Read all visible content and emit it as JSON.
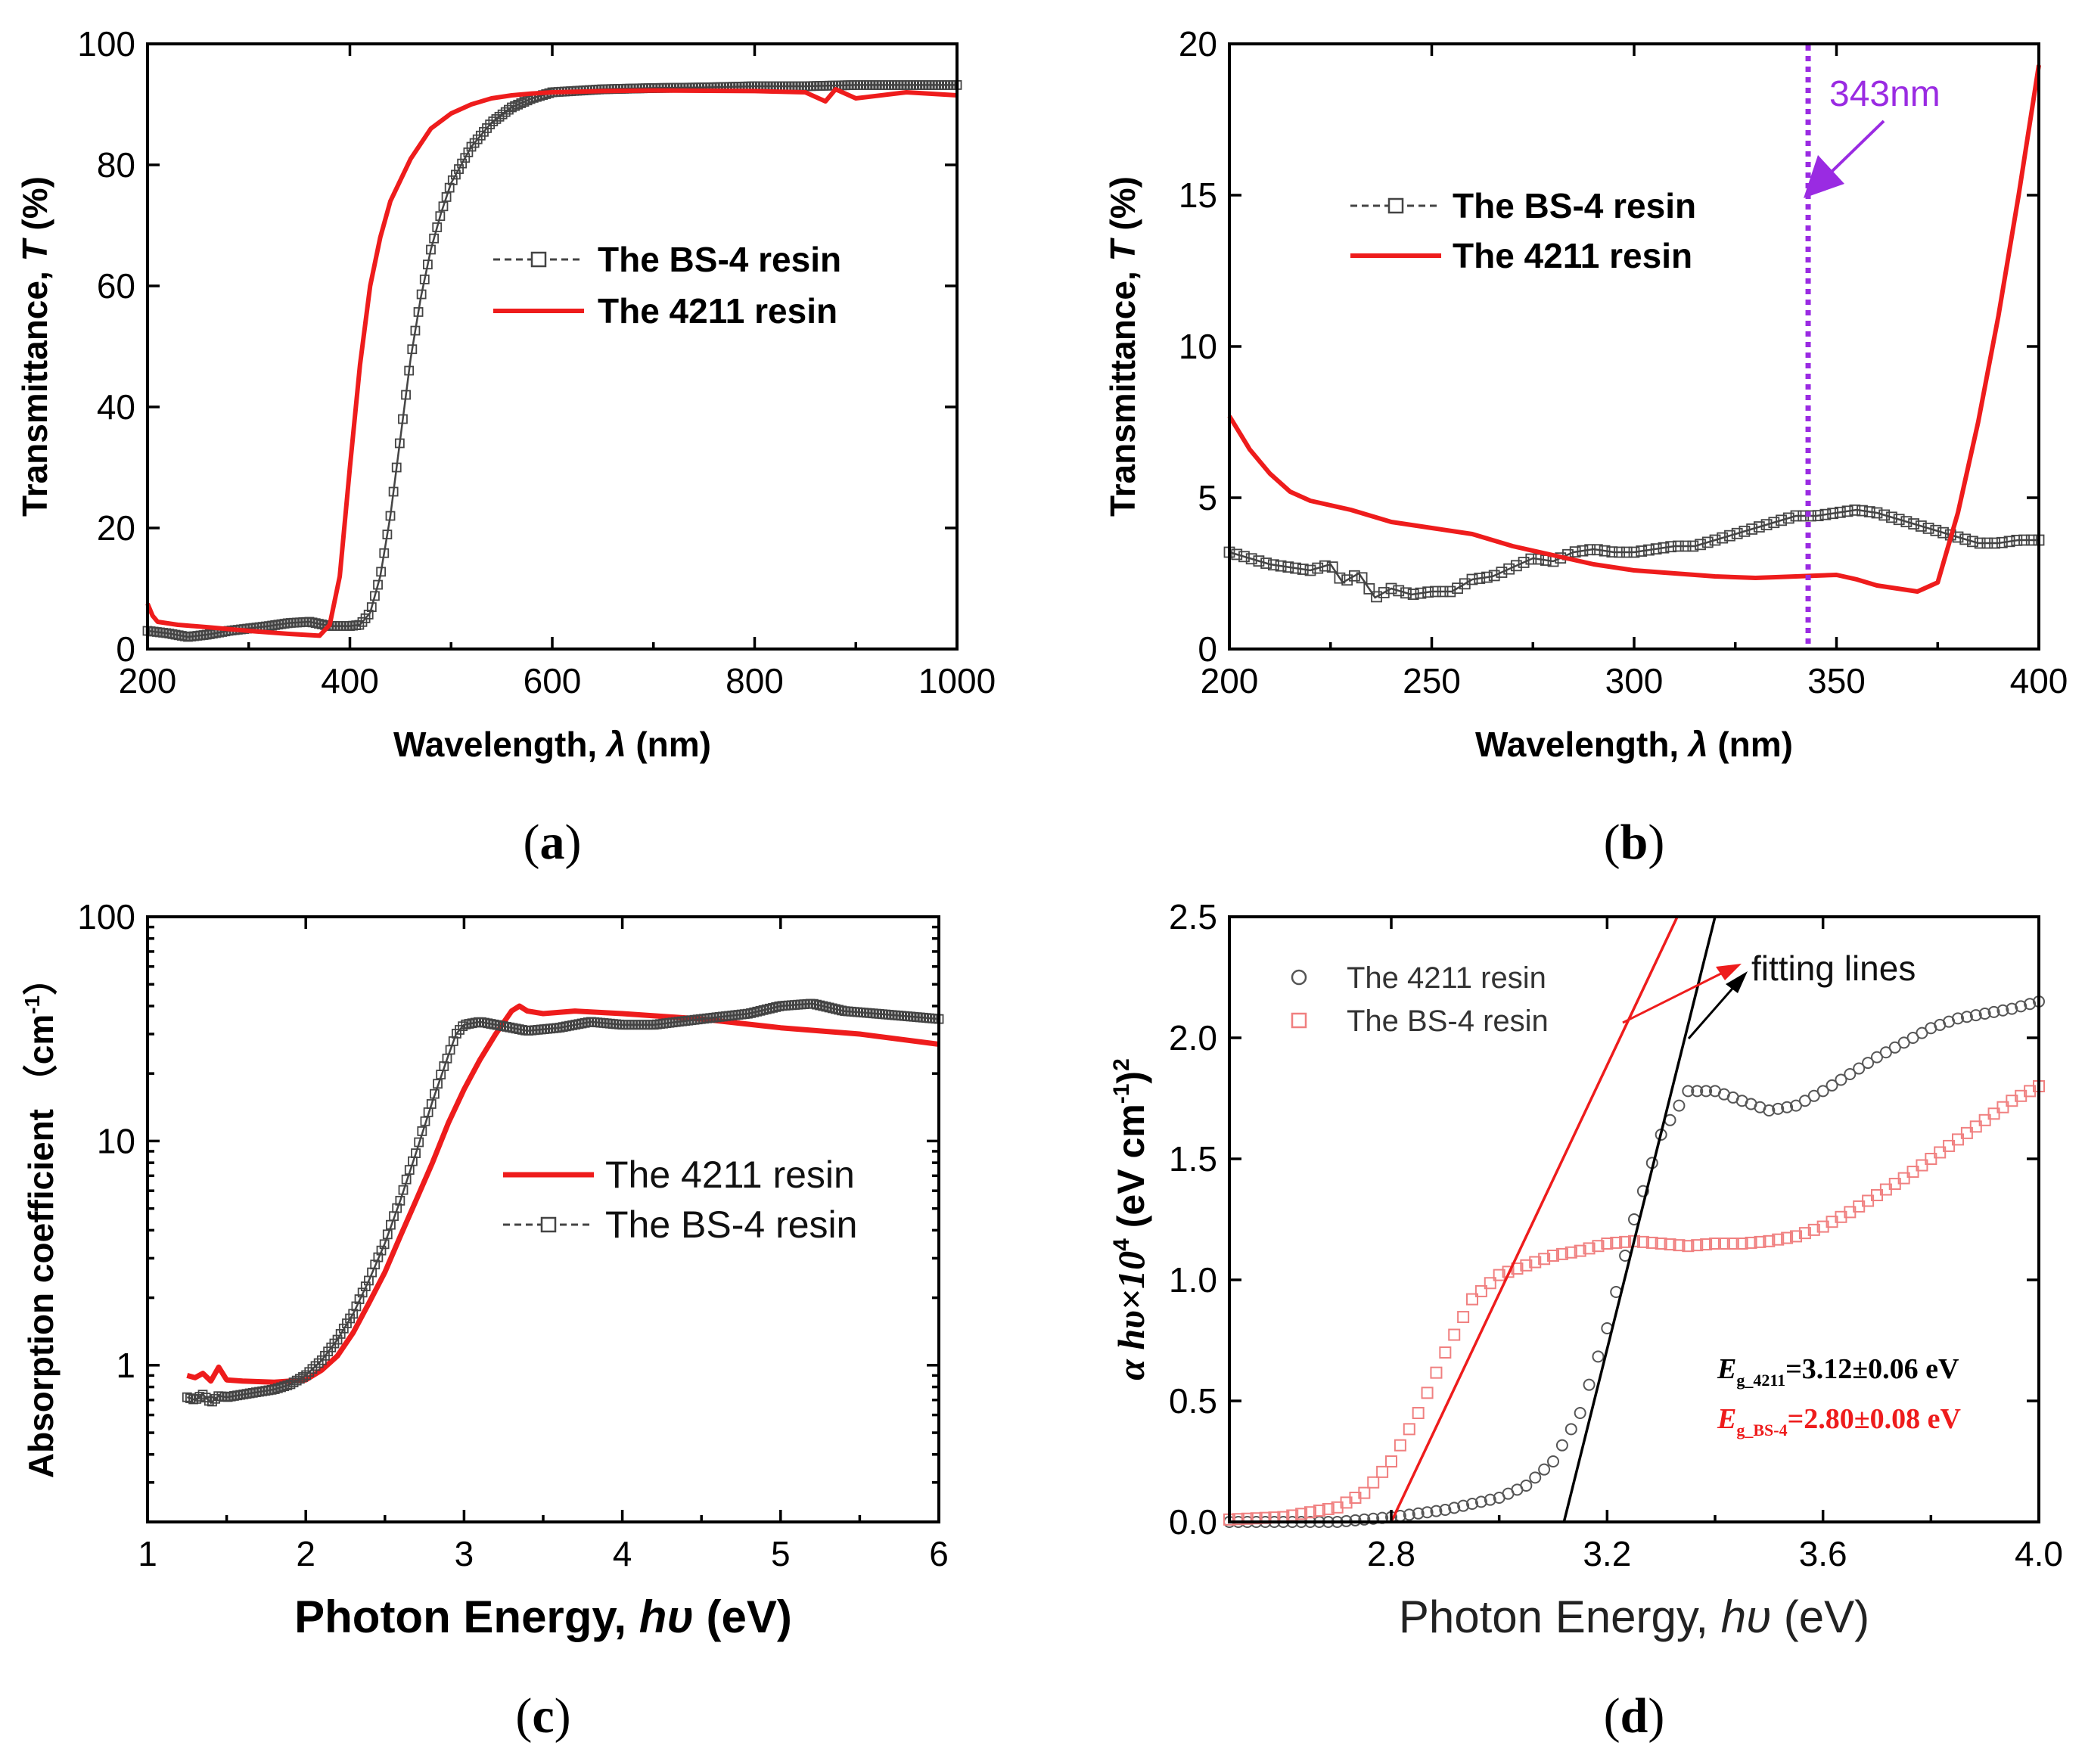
{
  "colors": {
    "red": "#ee1c1c",
    "gray": "#444444",
    "purple": "#9a2be2",
    "pink": "#f08080",
    "black": "#000000"
  },
  "panels": [
    {
      "label": "(a)",
      "l": "(",
      "c": "a",
      "r": ")"
    },
    {
      "label": "(b)",
      "l": "(",
      "c": "b",
      "r": ")"
    },
    {
      "label": "(c)",
      "l": "(",
      "c": "c",
      "r": ")"
    },
    {
      "label": "(d)",
      "l": "(",
      "c": "d",
      "r": ")"
    }
  ],
  "chart_data": [
    {
      "type": "line",
      "panel": "a",
      "xlabel": "Wavelength, λ (nm)",
      "xlabel_parts": {
        "pre": "Wavelength, ",
        "sym": "λ",
        "post": " (nm)"
      },
      "ylabel": "Transmittance, T (%)",
      "ylabel_parts": {
        "pre": "Transmittance, ",
        "sym": "T",
        "post": " (%)"
      },
      "xlim": [
        200,
        1000
      ],
      "ylim": [
        0,
        100
      ],
      "xticks": [
        200,
        400,
        600,
        800,
        1000
      ],
      "yticks": [
        0,
        20,
        40,
        60,
        80,
        100
      ],
      "legend": [
        "The BS-4 resin",
        "The 4211 resin"
      ],
      "series": [
        {
          "name": "The BS-4 resin",
          "style": "open-square-dashed",
          "x": [
            200,
            220,
            240,
            260,
            280,
            300,
            320,
            340,
            360,
            380,
            400,
            410,
            420,
            430,
            440,
            450,
            460,
            470,
            480,
            490,
            500,
            520,
            540,
            560,
            580,
            600,
            650,
            700,
            750,
            800,
            850,
            900,
            950,
            1000
          ],
          "y": [
            3,
            2.6,
            2,
            2.4,
            3,
            3.4,
            3.8,
            4.3,
            4.5,
            3.8,
            3.8,
            4,
            6,
            12,
            22,
            35,
            48,
            58,
            66,
            72,
            77,
            83,
            87,
            89.5,
            91,
            92,
            92.5,
            92.7,
            92.8,
            93,
            93,
            93.2,
            93.2,
            93.2
          ]
        },
        {
          "name": "The 4211 resin",
          "style": "solid",
          "x": [
            200,
            205,
            210,
            230,
            260,
            300,
            340,
            370,
            380,
            390,
            400,
            410,
            420,
            430,
            440,
            460,
            480,
            500,
            520,
            540,
            560,
            580,
            600,
            650,
            700,
            800,
            850,
            870,
            880,
            900,
            950,
            1000
          ],
          "y": [
            7.5,
            5.5,
            4.5,
            4,
            3.6,
            3,
            2.5,
            2.2,
            4,
            12,
            30,
            47,
            60,
            68,
            74,
            81,
            86,
            88.5,
            90,
            91,
            91.5,
            91.8,
            92,
            92.2,
            92.3,
            92.2,
            92,
            90.5,
            92.5,
            91,
            92,
            91.5
          ]
        }
      ]
    },
    {
      "type": "line",
      "panel": "b",
      "xlabel": "Wavelength, λ (nm)",
      "xlabel_parts": {
        "pre": "Wavelength, ",
        "sym": "λ",
        "post": " (nm)"
      },
      "ylabel": "Transmittance, T (%)",
      "ylabel_parts": {
        "pre": "Transmittance, ",
        "sym": "T",
        "post": " (%)"
      },
      "xlim": [
        200,
        400
      ],
      "ylim": [
        0,
        20
      ],
      "xticks": [
        200,
        250,
        300,
        350,
        400
      ],
      "yticks": [
        0,
        5,
        10,
        15,
        20
      ],
      "legend": [
        "The BS-4 resin",
        "The 4211 resin"
      ],
      "annotation": {
        "text": "343nm",
        "x": 343
      },
      "series": [
        {
          "name": "The BS-4 resin",
          "style": "open-square-dashed",
          "x": [
            200,
            205,
            210,
            215,
            220,
            225,
            228,
            232,
            236,
            240,
            245,
            250,
            255,
            260,
            265,
            270,
            275,
            280,
            285,
            290,
            295,
            300,
            305,
            310,
            315,
            320,
            325,
            330,
            335,
            340,
            345,
            350,
            355,
            360,
            365,
            370,
            375,
            380,
            385,
            390,
            395,
            400
          ],
          "y": [
            3.2,
            3,
            2.8,
            2.7,
            2.6,
            2.8,
            2.2,
            2.5,
            1.7,
            2,
            1.8,
            1.9,
            1.9,
            2.3,
            2.4,
            2.7,
            3,
            2.9,
            3.2,
            3.3,
            3.2,
            3.2,
            3.3,
            3.4,
            3.4,
            3.6,
            3.8,
            4,
            4.2,
            4.4,
            4.4,
            4.5,
            4.6,
            4.5,
            4.3,
            4.1,
            3.9,
            3.7,
            3.5,
            3.5,
            3.6,
            3.6
          ]
        },
        {
          "name": "The 4211 resin",
          "style": "solid",
          "x": [
            200,
            205,
            210,
            215,
            220,
            230,
            240,
            250,
            260,
            270,
            280,
            290,
            300,
            310,
            320,
            330,
            340,
            350,
            355,
            360,
            365,
            370,
            375,
            380,
            385,
            390,
            395,
            400
          ],
          "y": [
            7.7,
            6.6,
            5.8,
            5.2,
            4.9,
            4.6,
            4.2,
            4,
            3.8,
            3.4,
            3.1,
            2.8,
            2.6,
            2.5,
            2.4,
            2.35,
            2.4,
            2.45,
            2.3,
            2.1,
            2,
            1.9,
            2.2,
            4.5,
            7.5,
            11,
            15,
            19.3
          ]
        }
      ]
    },
    {
      "type": "line",
      "panel": "c",
      "xlabel": "Photon Energy, hυ (eV)",
      "xlabel_parts": {
        "pre": "Photon Energy, ",
        "sym": "hυ",
        "post": " (eV)"
      },
      "ylabel": "Absorption coefficient （cm-1）",
      "ylabel_parts": {
        "pre": "Absorption coefficient （cm",
        "sup": "-1",
        "post": "）"
      },
      "xlim": [
        1,
        6
      ],
      "ylim": [
        0.2,
        100
      ],
      "yscale": "log",
      "xticks": [
        1,
        2,
        3,
        4,
        5,
        6
      ],
      "yticks": [
        1,
        10,
        100
      ],
      "yticklabels": [
        "1",
        "10",
        "100"
      ],
      "legend": [
        "The 4211 resin",
        "The BS-4 resin"
      ],
      "series": [
        {
          "name": "The 4211 resin",
          "style": "solid",
          "x": [
            1.25,
            1.3,
            1.35,
            1.4,
            1.45,
            1.5,
            1.6,
            1.8,
            2,
            2.1,
            2.2,
            2.3,
            2.4,
            2.5,
            2.6,
            2.7,
            2.8,
            2.9,
            3,
            3.1,
            3.2,
            3.3,
            3.35,
            3.4,
            3.5,
            3.7,
            4,
            4.5,
            5,
            5.5,
            6
          ],
          "y": [
            0.9,
            0.88,
            0.92,
            0.85,
            0.98,
            0.86,
            0.85,
            0.84,
            0.86,
            0.95,
            1.1,
            1.4,
            1.9,
            2.6,
            3.8,
            5.5,
            8,
            12,
            17,
            23,
            30,
            38,
            40,
            38,
            37,
            38,
            37,
            35,
            32,
            30,
            27
          ]
        },
        {
          "name": "The BS-4 resin",
          "style": "open-square-dashed",
          "x": [
            1.25,
            1.3,
            1.35,
            1.4,
            1.45,
            1.5,
            1.6,
            1.8,
            1.9,
            2,
            2.1,
            2.2,
            2.3,
            2.4,
            2.5,
            2.6,
            2.7,
            2.8,
            2.9,
            2.95,
            3,
            3.1,
            3.2,
            3.4,
            3.6,
            3.8,
            4,
            4.2,
            4.5,
            4.8,
            5,
            5.2,
            5.4,
            5.6,
            5.8,
            6
          ],
          "y": [
            0.72,
            0.7,
            0.74,
            0.68,
            0.73,
            0.72,
            0.74,
            0.78,
            0.82,
            0.9,
            1.05,
            1.3,
            1.7,
            2.4,
            3.5,
            5.5,
            9,
            15,
            24,
            30,
            33,
            34,
            33,
            31,
            32,
            34,
            33,
            33,
            35,
            37,
            40,
            41,
            38,
            37,
            36,
            35
          ]
        }
      ]
    },
    {
      "type": "scatter",
      "panel": "d",
      "xlabel": "Photon Energy, hυ (eV)",
      "xlabel_parts": {
        "pre": "Photon Energy, ",
        "sym": "hυ",
        "post": " (eV)"
      },
      "ylabel": "α hυ×10^4 (eV cm^-1)^2",
      "ylabel_parts": {
        "a": "α hυ×10",
        "sup1": "4",
        "b": " (eV cm",
        "sup2": "-1",
        "c": ")",
        "sup3": "2"
      },
      "xlim": [
        2.5,
        4.0
      ],
      "ylim": [
        0,
        2.5
      ],
      "xticks": [
        2.8,
        3.2,
        3.6,
        4.0
      ],
      "xticklabels": [
        "2.8",
        "3.2",
        "3.6",
        "4.0"
      ],
      "yticks": [
        0,
        0.5,
        1.0,
        1.5,
        2.0,
        2.5
      ],
      "yticklabels": [
        "0.0",
        "0.5",
        "1.0",
        "1.5",
        "2.0",
        "2.5"
      ],
      "legend": [
        "The 4211 resin",
        "The BS-4 resin"
      ],
      "fit_label": "fitting lines",
      "eg_4211": {
        "E": "E",
        "sub": "g_4211",
        "val": "=3.12±0.06 eV"
      },
      "eg_bs4": {
        "E": "E",
        "sub": "g_BS-4",
        "val": "=2.80±0.08 eV"
      },
      "fit_lines": [
        {
          "name": "4211 fit",
          "x": [
            3.12,
            3.4
          ],
          "y": [
            0,
            2.5
          ]
        },
        {
          "name": "BS-4 fit",
          "x": [
            2.8,
            3.33
          ],
          "y": [
            0,
            2.5
          ]
        }
      ],
      "series": [
        {
          "name": "The 4211 resin",
          "style": "open-circle",
          "x": [
            2.5,
            2.6,
            2.7,
            2.8,
            2.9,
            3.0,
            3.05,
            3.1,
            3.15,
            3.2,
            3.25,
            3.3,
            3.35,
            3.4,
            3.45,
            3.5,
            3.55,
            3.6,
            3.65,
            3.7,
            3.75,
            3.8,
            3.85,
            3.9,
            3.95,
            4.0
          ],
          "y": [
            0,
            0,
            0,
            0.02,
            0.05,
            0.1,
            0.15,
            0.25,
            0.45,
            0.8,
            1.25,
            1.6,
            1.78,
            1.78,
            1.74,
            1.7,
            1.72,
            1.78,
            1.85,
            1.92,
            1.98,
            2.04,
            2.08,
            2.1,
            2.12,
            2.15
          ]
        },
        {
          "name": "The BS-4 resin",
          "style": "open-square",
          "x": [
            2.5,
            2.6,
            2.7,
            2.75,
            2.8,
            2.85,
            2.9,
            2.95,
            3.0,
            3.05,
            3.1,
            3.15,
            3.2,
            3.25,
            3.3,
            3.35,
            3.4,
            3.45,
            3.5,
            3.55,
            3.6,
            3.65,
            3.7,
            3.75,
            3.8,
            3.85,
            3.9,
            3.95,
            4.0
          ],
          "y": [
            0.01,
            0.02,
            0.06,
            0.12,
            0.25,
            0.45,
            0.7,
            0.92,
            1.02,
            1.06,
            1.1,
            1.12,
            1.15,
            1.16,
            1.15,
            1.14,
            1.15,
            1.15,
            1.16,
            1.18,
            1.22,
            1.28,
            1.35,
            1.42,
            1.5,
            1.58,
            1.66,
            1.74,
            1.8
          ]
        }
      ]
    }
  ]
}
